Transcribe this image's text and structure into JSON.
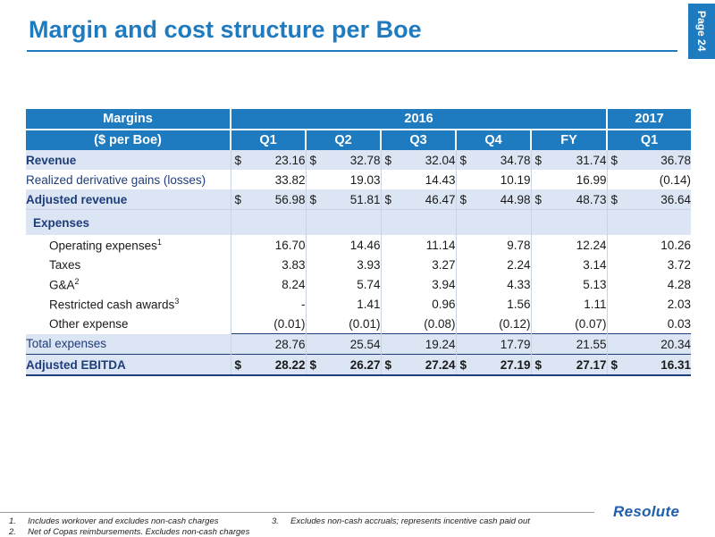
{
  "page": {
    "title": "Margin and cost structure per Boe",
    "page_label": "Page 24"
  },
  "table": {
    "header1": {
      "label": "Margins",
      "year1": "2016",
      "year2": "2017"
    },
    "header2": {
      "label": "($ per Boe)",
      "cols": [
        "Q1",
        "Q2",
        "Q3",
        "Q4",
        "FY",
        "Q1"
      ]
    },
    "rows": [
      {
        "label": "Revenue",
        "values": [
          "23.16",
          "32.78",
          "32.04",
          "34.78",
          "31.74",
          "36.78"
        ],
        "dollar": true
      },
      {
        "label": "Realized derivative gains (losses)",
        "values": [
          "33.82",
          "19.03",
          "14.43",
          "10.19",
          "16.99",
          "(0.14)"
        ]
      },
      {
        "label": "Adjusted revenue",
        "values": [
          "56.98",
          "51.81",
          "46.47",
          "44.98",
          "48.73",
          "36.64"
        ],
        "dollar": true
      },
      {
        "label": "Expenses"
      },
      {
        "label": "Operating expenses",
        "sup": "1",
        "values": [
          "16.70",
          "14.46",
          "11.14",
          "9.78",
          "12.24",
          "10.26"
        ]
      },
      {
        "label": "Taxes",
        "values": [
          "3.83",
          "3.93",
          "3.27",
          "2.24",
          "3.14",
          "3.72"
        ]
      },
      {
        "label": "G&A",
        "sup": "2",
        "values": [
          "8.24",
          "5.74",
          "3.94",
          "4.33",
          "5.13",
          "4.28"
        ]
      },
      {
        "label": "Restricted cash awards",
        "sup": "3",
        "values": [
          "-",
          "1.41",
          "0.96",
          "1.56",
          "1.11",
          "2.03"
        ]
      },
      {
        "label": "Other expense",
        "values": [
          "(0.01)",
          "(0.01)",
          "(0.08)",
          "(0.12)",
          "(0.07)",
          "0.03"
        ]
      },
      {
        "label": "Total expenses",
        "values": [
          "28.76",
          "25.54",
          "19.24",
          "17.79",
          "21.55",
          "20.34"
        ]
      },
      {
        "label": "Adjusted EBITDA",
        "values": [
          "28.22",
          "26.27",
          "27.24",
          "27.19",
          "27.17",
          "16.31"
        ],
        "dollar": true
      }
    ],
    "currency_symbol": "$"
  },
  "footnotes": {
    "fn1_num": "1.",
    "fn1_text": "Includes workover and excludes non-cash charges",
    "fn2_num": "2.",
    "fn2_text": "Net of Copas reimbursements. Excludes non-cash charges",
    "fn3_num": "3.",
    "fn3_text": "Excludes non-cash accruals; represents incentive cash paid out"
  },
  "logo": {
    "text": "Resolute"
  },
  "colors": {
    "brand_blue": "#1f7bc0",
    "row_shade": "#dbe5f3"
  }
}
